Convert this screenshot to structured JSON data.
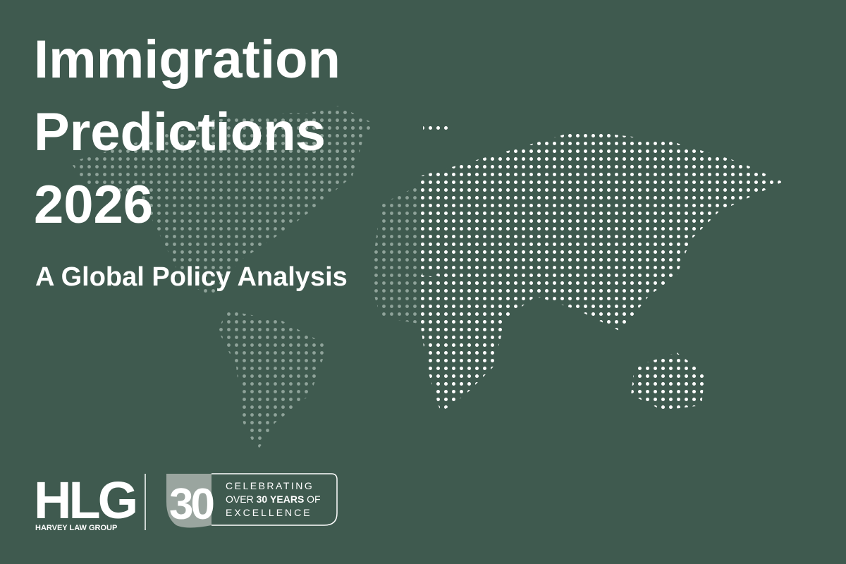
{
  "header": {
    "title_lines": [
      "Immigration",
      "Predictions",
      "2026"
    ],
    "subtitle": "A Global Policy Analysis"
  },
  "logo": {
    "mark": "HLG",
    "name": "HARVEY LAW GROUP"
  },
  "badge": {
    "number": "30",
    "line1": "CELEBRATING",
    "line2_start": "OVER",
    "line2_number": "30",
    "line2_bold": "YEARS",
    "line2_end": "OF",
    "line3": "EXCELLENCE"
  }
}
